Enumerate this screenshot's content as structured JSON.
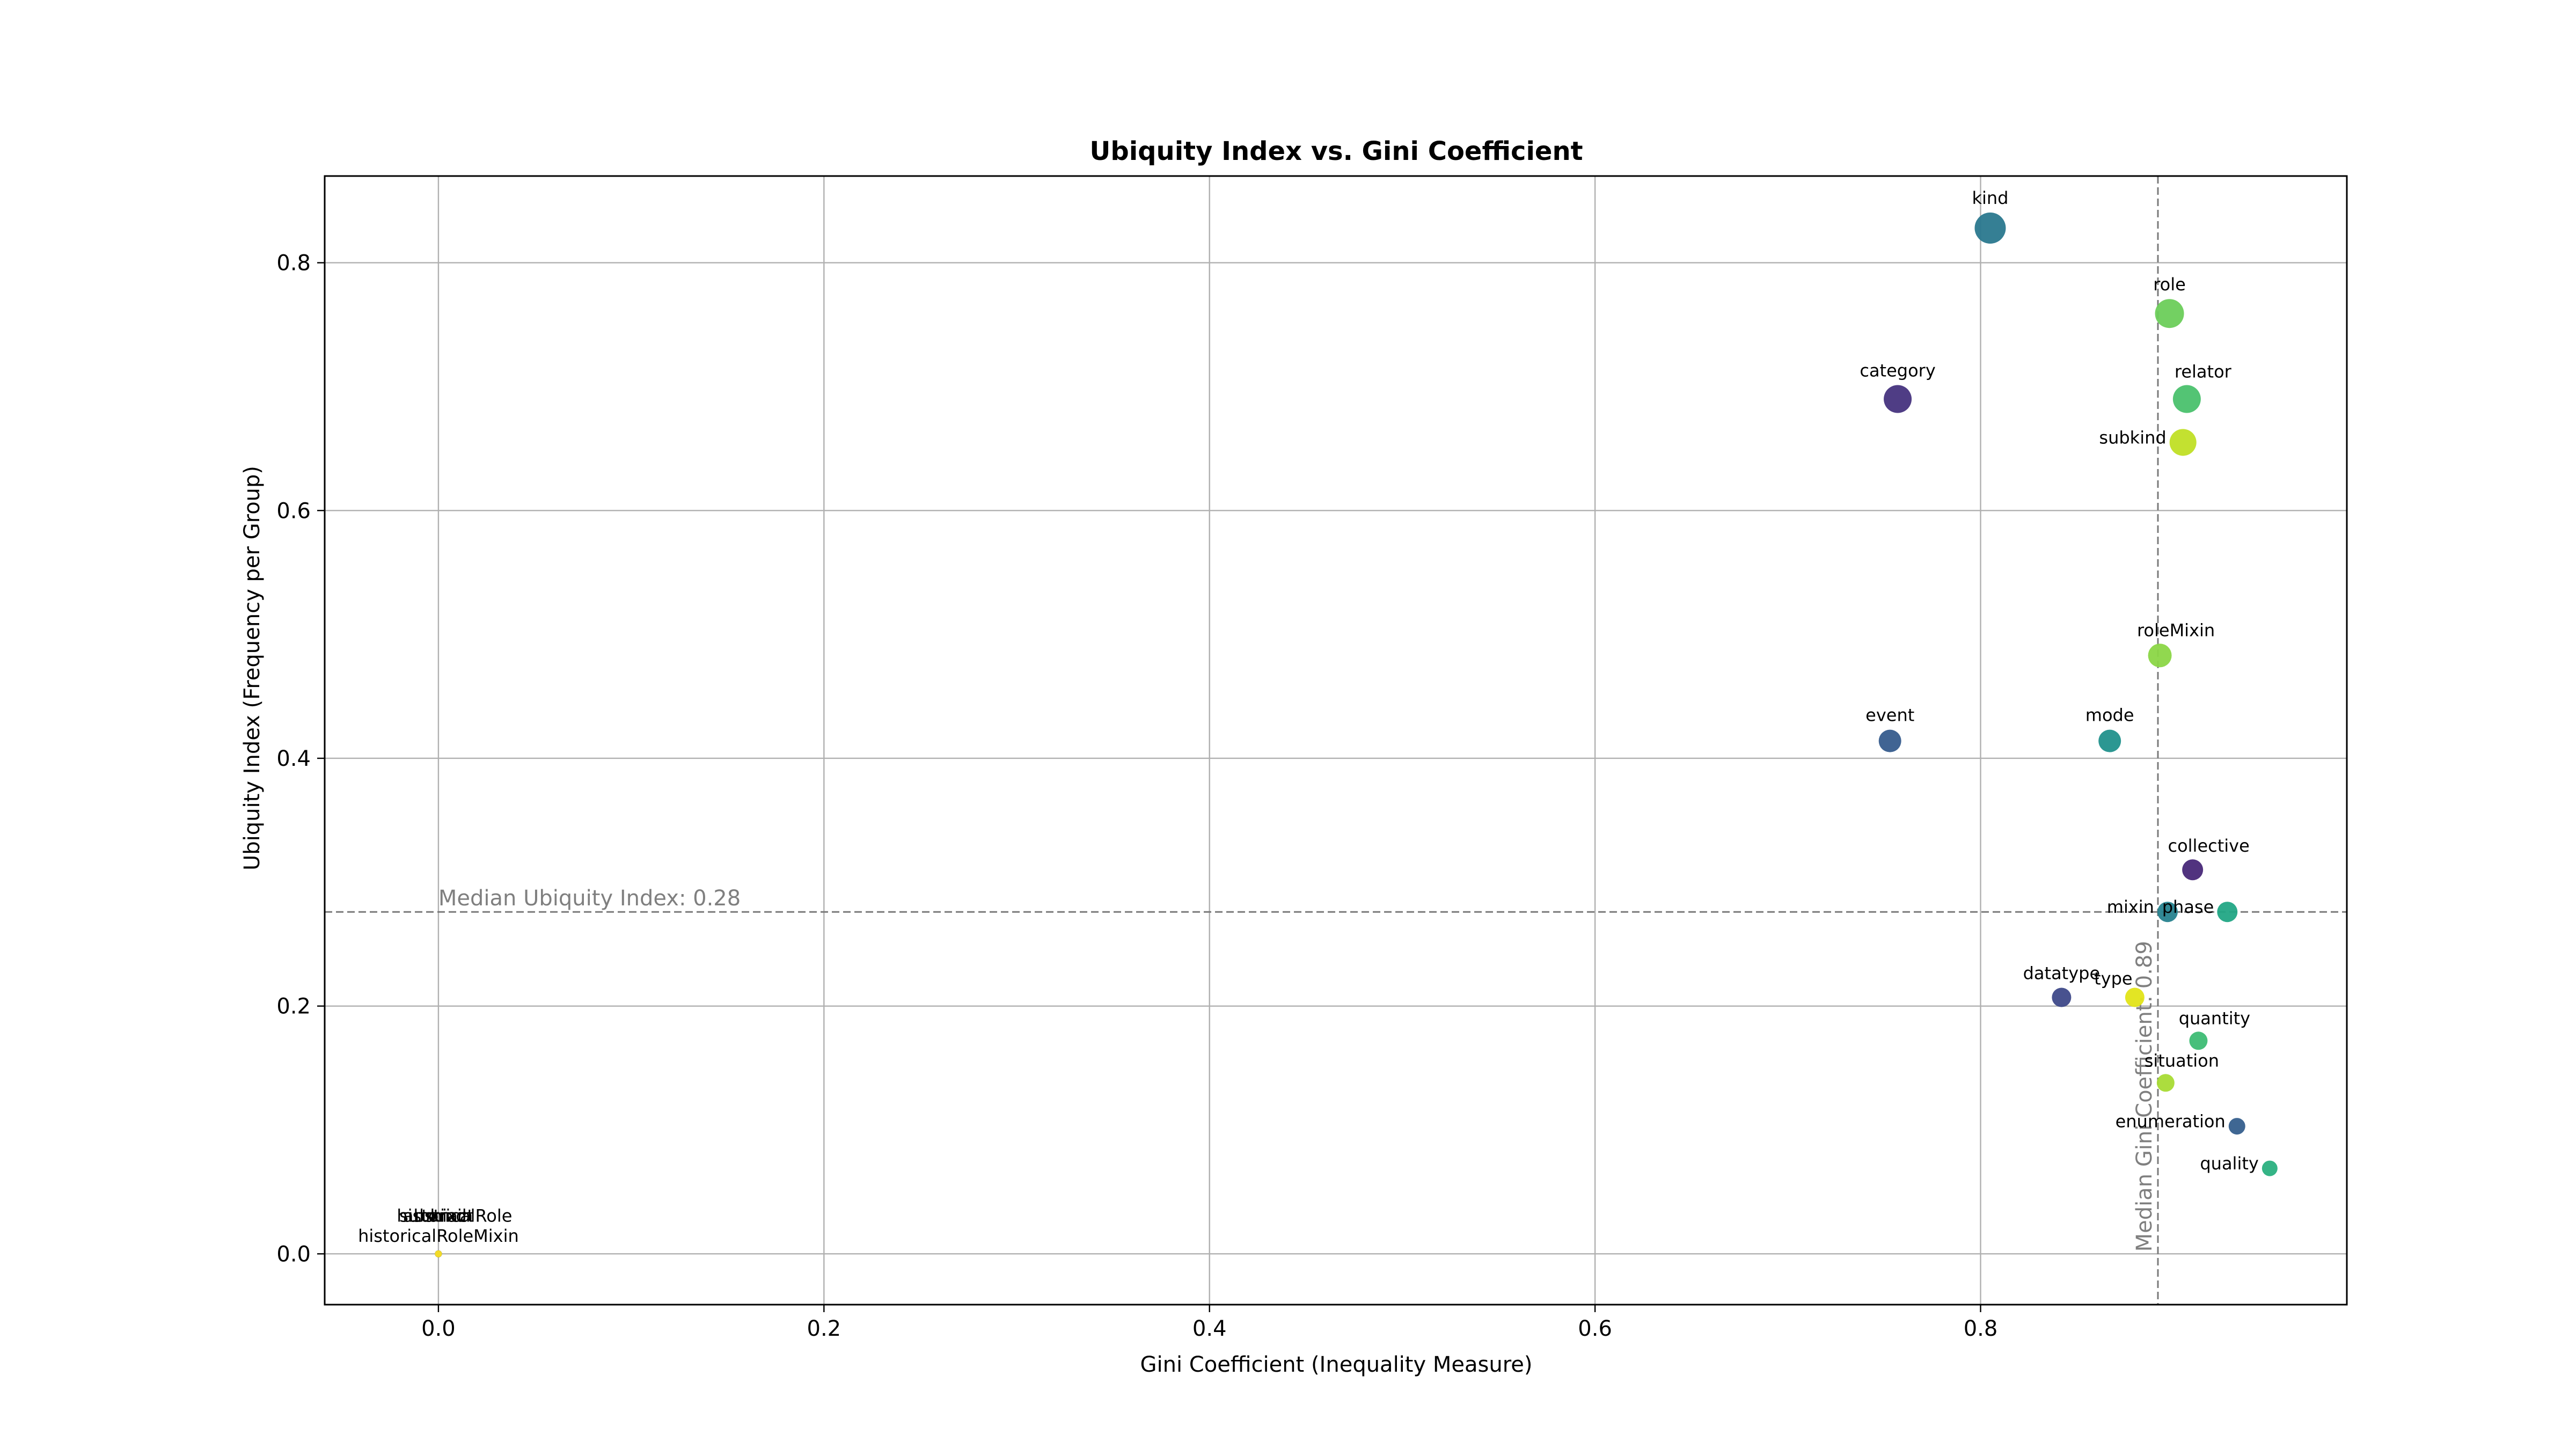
{
  "chart_data": {
    "type": "scatter",
    "title": "Ubiquity Index vs. Gini Coefficient",
    "xlabel": "Gini Coefficient (Inequality Measure)",
    "ylabel": "Ubiquity Index (Frequency per Group)",
    "xlim": [
      -0.059,
      0.99
    ],
    "ylim": [
      -0.041,
      0.87
    ],
    "xticks": [
      0.0,
      0.2,
      0.4,
      0.6,
      0.8
    ],
    "xtick_labels": [
      "0.0",
      "0.2",
      "0.4",
      "0.6",
      "0.8"
    ],
    "yticks": [
      0.0,
      0.2,
      0.4,
      0.6,
      0.8
    ],
    "ytick_labels": [
      "0.0",
      "0.2",
      "0.4",
      "0.6",
      "0.8"
    ],
    "grid": true,
    "median_x": 0.892,
    "median_y": 0.276,
    "median_x_label": "Median Gini Coefficient: 0.89",
    "median_y_label": "Median Ubiquity Index: 0.28",
    "points": [
      {
        "label": "kind",
        "x": 0.805,
        "y": 0.828,
        "size": 1.0,
        "color": "#2a788e",
        "anchor": "above"
      },
      {
        "label": "role",
        "x": 0.898,
        "y": 0.759,
        "size": 0.92,
        "color": "#6ccd5a",
        "anchor": "above"
      },
      {
        "label": "relator",
        "x": 0.907,
        "y": 0.69,
        "size": 0.88,
        "color": "#4ac16d",
        "anchor": "above-right"
      },
      {
        "label": "category",
        "x": 0.757,
        "y": 0.69,
        "size": 0.88,
        "color": "#46337e",
        "anchor": "above"
      },
      {
        "label": "subkind",
        "x": 0.905,
        "y": 0.655,
        "size": 0.84,
        "color": "#c0df25",
        "anchor": "left"
      },
      {
        "label": "roleMixin",
        "x": 0.893,
        "y": 0.483,
        "size": 0.72,
        "color": "#8bd646",
        "anchor": "above-right"
      },
      {
        "label": "event",
        "x": 0.753,
        "y": 0.414,
        "size": 0.68,
        "color": "#365c8d",
        "anchor": "above"
      },
      {
        "label": "mode",
        "x": 0.867,
        "y": 0.414,
        "size": 0.68,
        "color": "#21918c",
        "anchor": "above"
      },
      {
        "label": "collective",
        "x": 0.91,
        "y": 0.31,
        "size": 0.62,
        "color": "#482878",
        "anchor": "above-right"
      },
      {
        "label": "mixin",
        "x": 0.897,
        "y": 0.276,
        "size": 0.6,
        "color": "#26828e",
        "anchor": "left"
      },
      {
        "label": "phase",
        "x": 0.928,
        "y": 0.276,
        "size": 0.6,
        "color": "#22a785",
        "anchor": "left"
      },
      {
        "label": "datatype",
        "x": 0.842,
        "y": 0.207,
        "size": 0.56,
        "color": "#3e4989",
        "anchor": "above"
      },
      {
        "label": "type",
        "x": 0.88,
        "y": 0.207,
        "size": 0.56,
        "color": "#e2e418",
        "anchor": "above-left"
      },
      {
        "label": "quantity",
        "x": 0.913,
        "y": 0.172,
        "size": 0.52,
        "color": "#3dbc74",
        "anchor": "above-right"
      },
      {
        "label": "situation",
        "x": 0.896,
        "y": 0.138,
        "size": 0.5,
        "color": "#a8db34",
        "anchor": "above-right"
      },
      {
        "label": "enumeration",
        "x": 0.933,
        "y": 0.103,
        "size": 0.46,
        "color": "#355f8d",
        "anchor": "left"
      },
      {
        "label": "quality",
        "x": 0.95,
        "y": 0.069,
        "size": 0.42,
        "color": "#2ab07f",
        "anchor": "left"
      },
      {
        "label": "historicalRoleMixin",
        "x": 0.0,
        "y": 0.0,
        "size": 0.1,
        "color": "#1f9e89",
        "anchor": "above"
      },
      {
        "label": "historicalRole",
        "x": 0.0,
        "y": 0.0,
        "size": 0.1,
        "color": "#35b779",
        "anchor": "above-overlap"
      },
      {
        "label": "abstract",
        "x": 0.0,
        "y": 0.0,
        "size": 0.1,
        "color": "#31688e",
        "anchor": "above-overlap"
      },
      {
        "label": "mixin",
        "x": 0.0,
        "y": 0.0,
        "size": 0.1,
        "color": "#440154",
        "anchor": "above-overlap"
      },
      {
        "label": "subkind",
        "x": 0.0,
        "y": 0.0,
        "size": 0.1,
        "color": "#fde725",
        "anchor": "above-overlap"
      }
    ]
  }
}
